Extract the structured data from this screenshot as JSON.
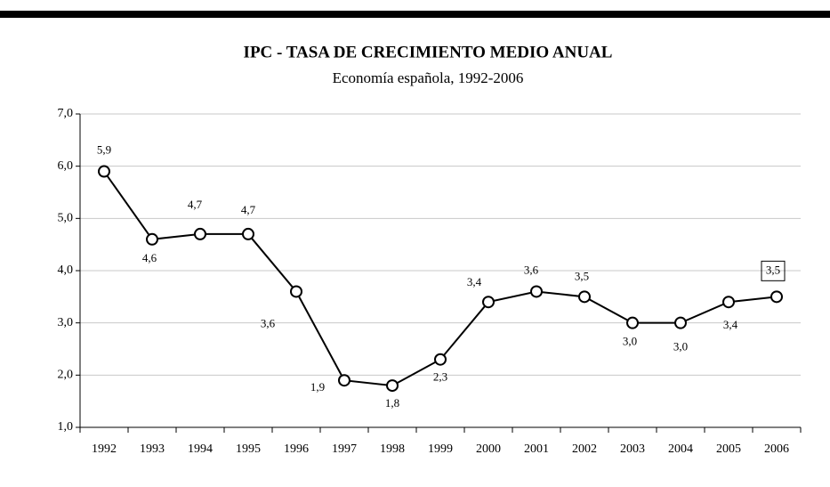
{
  "chart_data": {
    "type": "line",
    "title": "IPC - TASA DE CRECIMIENTO MEDIO ANUAL",
    "subtitle": "Economía española, 1992-2006",
    "categories": [
      "1992",
      "1993",
      "1994",
      "1995",
      "1996",
      "1997",
      "1998",
      "1999",
      "2000",
      "2001",
      "2002",
      "2003",
      "2004",
      "2005",
      "2006"
    ],
    "series": [
      {
        "name": "IPC",
        "color": "#000000",
        "values": [
          5.9,
          4.6,
          4.7,
          4.7,
          3.6,
          1.9,
          1.8,
          2.3,
          3.4,
          3.6,
          3.5,
          3.0,
          3.0,
          3.4,
          3.5
        ],
        "value_labels": [
          "5,9",
          "4,6",
          "4,7",
          "4,7",
          "3,6",
          "1,9",
          "1,8",
          "2,3",
          "3,4",
          "3,6",
          "3,5",
          "3,0",
          "3,0",
          "3,4",
          "3,5"
        ]
      }
    ],
    "ylim": [
      1,
      7
    ],
    "yticks": [
      {
        "value": 1,
        "label": "1,0"
      },
      {
        "value": 2,
        "label": "2,0"
      },
      {
        "value": 3,
        "label": "3,0"
      },
      {
        "value": 4,
        "label": "4,0"
      },
      {
        "value": 5,
        "label": "5,0"
      },
      {
        "value": 6,
        "label": "6,0"
      },
      {
        "value": 7,
        "label": "7,0"
      }
    ],
    "grid": true
  }
}
